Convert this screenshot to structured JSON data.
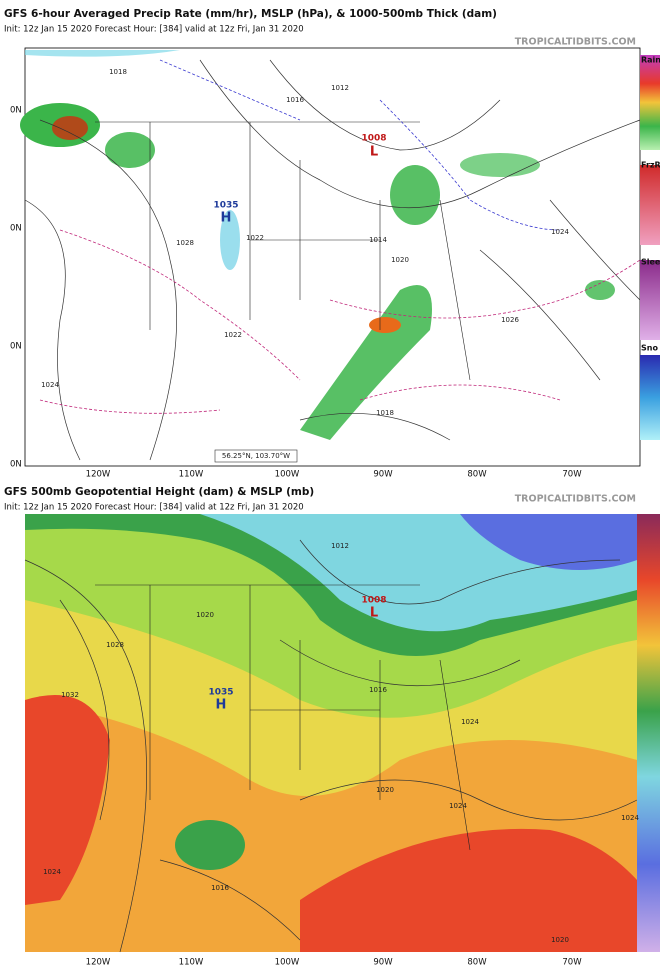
{
  "panels": [
    {
      "title": "GFS 6-hour Averaged Precip Rate (mm/hr), MSLP (hPa), & 1000-500mb Thick (dam)",
      "init": "Init: 12z Jan 15 2020   Forecast Hour: [384]   valid at 12z Fri, Jan 31 2020",
      "site": "TROPICALTIDBITS.COM",
      "lat_labels": [
        "0N",
        "0N",
        "0N",
        "0N"
      ],
      "lon_labels": [
        "120W",
        "110W",
        "100W",
        "90W",
        "80W",
        "70W"
      ],
      "legend": [
        "Rain",
        "FrzR",
        "Slee",
        "Sno"
      ],
      "centers": [
        {
          "letter": "H",
          "value": "1035"
        },
        {
          "letter": "L",
          "value": "1008"
        }
      ],
      "isobars": [
        "1018",
        "1016",
        "1012",
        "1014",
        "1028",
        "1022",
        "1026",
        "1020",
        "1024",
        "1024",
        "1018",
        "1022"
      ],
      "cursor": "56.25°N, 103.70°W"
    },
    {
      "title": "GFS 500mb Geopotential Height (dam) & MSLP (mb)",
      "init": "Init: 12z Jan 15 2020   Forecast Hour: [384]   valid at 12z Fri, Jan 31 2020",
      "site": "TROPICALTIDBITS.COM",
      "lon_labels": [
        "120W",
        "110W",
        "100W",
        "90W",
        "80W",
        "70W"
      ],
      "centers": [
        {
          "letter": "H",
          "value": "1035"
        },
        {
          "letter": "L",
          "value": "1008"
        }
      ],
      "isobars": [
        "1012",
        "1016",
        "1020",
        "1024",
        "1028",
        "1032",
        "1016",
        "1020",
        "1024",
        "1024",
        "1020",
        "1024"
      ]
    }
  ]
}
